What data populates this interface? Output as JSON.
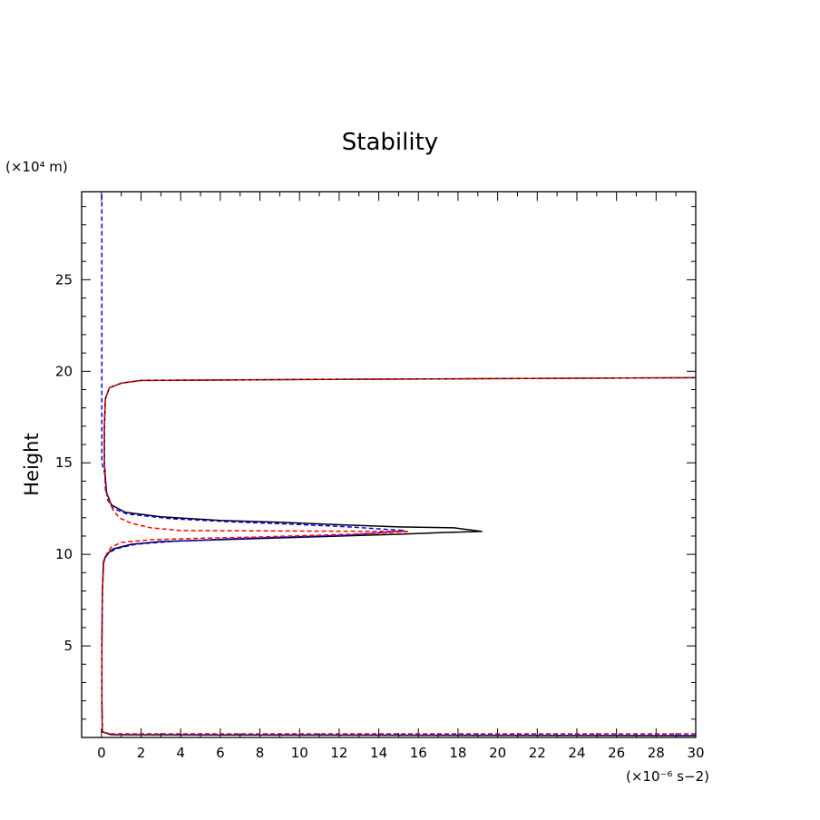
{
  "chart_data": {
    "type": "line",
    "title": "Stability",
    "xlabel": "",
    "ylabel": "Height",
    "x_unit_label": "(×10⁻⁶ s−2)",
    "y_unit_label": "(×10⁴ m)",
    "xlim": [
      -1,
      30
    ],
    "ylim": [
      0,
      29.8
    ],
    "xticks": [
      0,
      2,
      4,
      6,
      8,
      10,
      12,
      14,
      16,
      18,
      20,
      22,
      24,
      26,
      28,
      30
    ],
    "xtick_labels": [
      "0",
      "2",
      "4",
      "6",
      "8",
      "10",
      "12",
      "14",
      "16",
      "18",
      "20",
      "22",
      "24",
      "26",
      "28",
      "30"
    ],
    "yticks": [
      5,
      10,
      15,
      20,
      25
    ],
    "ytick_labels": [
      "5",
      "10",
      "15",
      "20",
      "25"
    ],
    "grid": false,
    "series": [
      {
        "color": "#000000",
        "style": "solid",
        "points": [
          [
            30,
            0.1
          ],
          [
            0.5,
            0.15
          ],
          [
            0.05,
            0.3
          ],
          [
            0.02,
            2
          ],
          [
            0.02,
            5
          ],
          [
            0.05,
            8
          ],
          [
            0.1,
            9.6
          ],
          [
            0.25,
            10
          ],
          [
            0.6,
            10.3
          ],
          [
            1.5,
            10.55
          ],
          [
            3,
            10.7
          ],
          [
            6,
            10.8
          ],
          [
            9,
            10.9
          ],
          [
            12,
            11
          ],
          [
            15,
            11.1
          ],
          [
            17.5,
            11.2
          ],
          [
            19.2,
            11.25
          ],
          [
            17.8,
            11.45
          ],
          [
            15,
            11.5
          ],
          [
            12,
            11.62
          ],
          [
            9,
            11.75
          ],
          [
            6,
            11.85
          ],
          [
            3,
            12.05
          ],
          [
            1.2,
            12.3
          ],
          [
            0.5,
            12.7
          ],
          [
            0.25,
            13.4
          ],
          [
            0.15,
            15
          ],
          [
            0.15,
            17
          ],
          [
            0.2,
            18.5
          ],
          [
            0.4,
            19.1
          ],
          [
            1,
            19.35
          ],
          [
            2,
            19.5
          ],
          [
            10,
            19.55
          ],
          [
            20,
            19.6
          ],
          [
            30,
            19.65
          ]
        ]
      },
      {
        "color": "#0000ff",
        "style": "dashed",
        "points": [
          [
            30,
            0.12
          ],
          [
            0.5,
            0.17
          ],
          [
            0.05,
            0.3
          ],
          [
            0.02,
            2
          ],
          [
            0.02,
            5
          ],
          [
            0.05,
            8
          ],
          [
            0.12,
            9.6
          ],
          [
            0.3,
            10
          ],
          [
            0.7,
            10.3
          ],
          [
            1.7,
            10.55
          ],
          [
            3.5,
            10.7
          ],
          [
            6.5,
            10.85
          ],
          [
            9.5,
            10.95
          ],
          [
            12.5,
            11.05
          ],
          [
            15.3,
            11.3
          ],
          [
            12.5,
            11.5
          ],
          [
            9.5,
            11.65
          ],
          [
            6.5,
            11.78
          ],
          [
            3.5,
            11.95
          ],
          [
            1.3,
            12.2
          ],
          [
            0.6,
            12.5
          ],
          [
            0.3,
            13
          ],
          [
            0.15,
            14.5
          ],
          [
            0.02,
            15
          ],
          [
            0.02,
            20
          ],
          [
            0.02,
            25
          ],
          [
            0.02,
            29.8
          ]
        ]
      },
      {
        "color": "#ff0000",
        "style": "dashed",
        "points": [
          [
            30,
            0.2
          ],
          [
            0.5,
            0.2
          ],
          [
            0.05,
            0.3
          ],
          [
            0.02,
            2
          ],
          [
            0.02,
            5
          ],
          [
            0.05,
            8
          ],
          [
            0.12,
            9.6
          ],
          [
            0.25,
            10
          ],
          [
            0.5,
            10.4
          ],
          [
            1,
            10.65
          ],
          [
            2.5,
            10.8
          ],
          [
            5,
            10.88
          ],
          [
            8,
            10.95
          ],
          [
            11,
            11.05
          ],
          [
            14,
            11.15
          ],
          [
            15.5,
            11.25
          ],
          [
            4,
            11.3
          ],
          [
            2.5,
            11.45
          ],
          [
            1.5,
            11.7
          ],
          [
            0.9,
            12
          ],
          [
            0.6,
            12.4
          ],
          [
            0.4,
            12.9
          ],
          [
            0.2,
            13.5
          ],
          [
            0.15,
            15
          ],
          [
            0.15,
            17
          ],
          [
            0.2,
            18.5
          ],
          [
            0.4,
            19.1
          ],
          [
            1,
            19.35
          ],
          [
            2,
            19.5
          ],
          [
            10,
            19.55
          ],
          [
            20,
            19.6
          ],
          [
            30,
            19.65
          ]
        ]
      }
    ]
  }
}
